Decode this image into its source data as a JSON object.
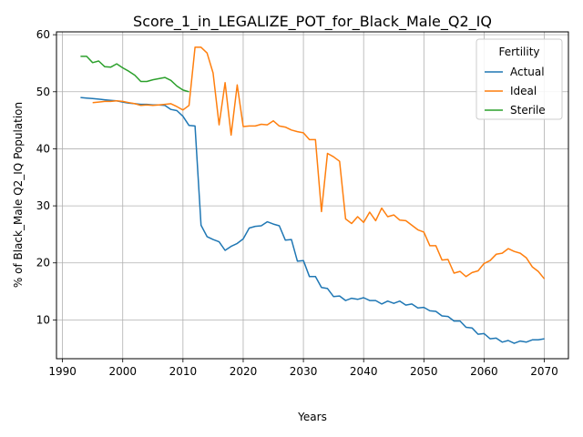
{
  "chart_data": {
    "type": "line",
    "title": "Score_1_in_LEGALIZE_POT_for_Black_Male_Q2_IQ",
    "xlabel": "Years",
    "ylabel": "% of Black_Male Q2_IQ Population",
    "xlim": [
      1989,
      2074
    ],
    "ylim": [
      3.2,
      60.5
    ],
    "xticks": [
      1990,
      2000,
      2010,
      2020,
      2030,
      2040,
      2050,
      2060,
      2070
    ],
    "yticks": [
      10,
      20,
      30,
      40,
      50,
      60
    ],
    "grid": true,
    "legend": {
      "title": "Fertility",
      "position": "top-right"
    },
    "series": [
      {
        "name": "Actual",
        "color": "#1f77b4",
        "x": [
          1993,
          1994,
          1995,
          1996,
          1997,
          1998,
          1999,
          2000,
          2001,
          2002,
          2003,
          2004,
          2005,
          2006,
          2007,
          2008,
          2009,
          2010,
          2011,
          2012,
          2013,
          2014,
          2015,
          2016,
          2017,
          2018,
          2019,
          2020,
          2021,
          2022,
          2023,
          2024,
          2025,
          2026,
          2027,
          2028,
          2029,
          2030,
          2031,
          2032,
          2033,
          2034,
          2035,
          2036,
          2037,
          2038,
          2039,
          2040,
          2041,
          2042,
          2043,
          2044,
          2045,
          2046,
          2047,
          2048,
          2049,
          2050,
          2051,
          2052,
          2053,
          2054,
          2055,
          2056,
          2057,
          2058,
          2059,
          2060,
          2061,
          2062,
          2063,
          2064,
          2065,
          2066,
          2067,
          2068,
          2069,
          2070
        ],
        "y": [
          49.0,
          48.9,
          48.8,
          48.7,
          48.6,
          48.5,
          48.4,
          48.2,
          48.0,
          47.9,
          47.8,
          47.8,
          47.7,
          47.7,
          47.6,
          46.9,
          46.7,
          45.7,
          44.1,
          44.0,
          26.6,
          24.6,
          24.1,
          23.7,
          22.2,
          22.9,
          23.4,
          24.2,
          26.1,
          26.4,
          26.5,
          27.2,
          26.8,
          26.5,
          24.0,
          24.1,
          20.3,
          20.4,
          17.6,
          17.6,
          15.7,
          15.5,
          14.1,
          14.2,
          13.4,
          13.8,
          13.6,
          13.9,
          13.4,
          13.4,
          12.8,
          13.3,
          12.9,
          13.3,
          12.6,
          12.8,
          12.1,
          12.2,
          11.6,
          11.5,
          10.7,
          10.6,
          9.8,
          9.8,
          8.7,
          8.6,
          7.5,
          7.6,
          6.7,
          6.8,
          6.1,
          6.4,
          5.9,
          6.3,
          6.1,
          6.5,
          6.5,
          6.7
        ]
      },
      {
        "name": "Ideal",
        "color": "#ff7f0e",
        "x": [
          1995,
          1996,
          1997,
          1998,
          1999,
          2000,
          2001,
          2002,
          2003,
          2004,
          2005,
          2006,
          2007,
          2008,
          2009,
          2010,
          2011,
          2012,
          2013,
          2014,
          2015,
          2016,
          2017,
          2018,
          2019,
          2020,
          2021,
          2022,
          2023,
          2024,
          2025,
          2026,
          2027,
          2028,
          2029,
          2030,
          2031,
          2032,
          2033,
          2034,
          2035,
          2036,
          2037,
          2038,
          2039,
          2040,
          2041,
          2042,
          2043,
          2044,
          2045,
          2046,
          2047,
          2048,
          2049,
          2050,
          2051,
          2052,
          2053,
          2054,
          2055,
          2056,
          2057,
          2058,
          2059,
          2060,
          2061,
          2062,
          2063,
          2064,
          2065,
          2066,
          2067,
          2068,
          2069,
          2070
        ],
        "y": [
          48.1,
          48.2,
          48.3,
          48.3,
          48.4,
          48.3,
          48.1,
          47.9,
          47.6,
          47.7,
          47.6,
          47.7,
          47.8,
          47.9,
          47.4,
          46.8,
          47.6,
          57.8,
          57.8,
          56.8,
          53.3,
          44.2,
          51.6,
          42.4,
          51.2,
          43.9,
          44.0,
          44.0,
          44.3,
          44.2,
          44.9,
          44.0,
          43.8,
          43.3,
          43.0,
          42.8,
          41.6,
          41.6,
          29.0,
          39.2,
          38.6,
          37.8,
          27.7,
          26.9,
          28.1,
          27.1,
          28.9,
          27.4,
          29.6,
          28.1,
          28.4,
          27.5,
          27.4,
          26.6,
          25.8,
          25.4,
          23.0,
          23.0,
          20.5,
          20.6,
          18.2,
          18.5,
          17.6,
          18.3,
          18.6,
          19.9,
          20.4,
          21.5,
          21.7,
          22.5,
          22.0,
          21.7,
          20.9,
          19.3,
          18.5,
          17.2
        ]
      },
      {
        "name": "Sterile",
        "color": "#2ca02c",
        "x": [
          1993,
          1994,
          1995,
          1996,
          1997,
          1998,
          1999,
          2000,
          2001,
          2002,
          2003,
          2004,
          2005,
          2006,
          2007,
          2008,
          2009,
          2010,
          2011
        ],
        "y": [
          56.2,
          56.2,
          55.1,
          55.4,
          54.4,
          54.3,
          54.9,
          54.2,
          53.6,
          52.9,
          51.8,
          51.8,
          52.1,
          52.3,
          52.5,
          52.0,
          51.0,
          50.3,
          50.0
        ]
      }
    ]
  }
}
